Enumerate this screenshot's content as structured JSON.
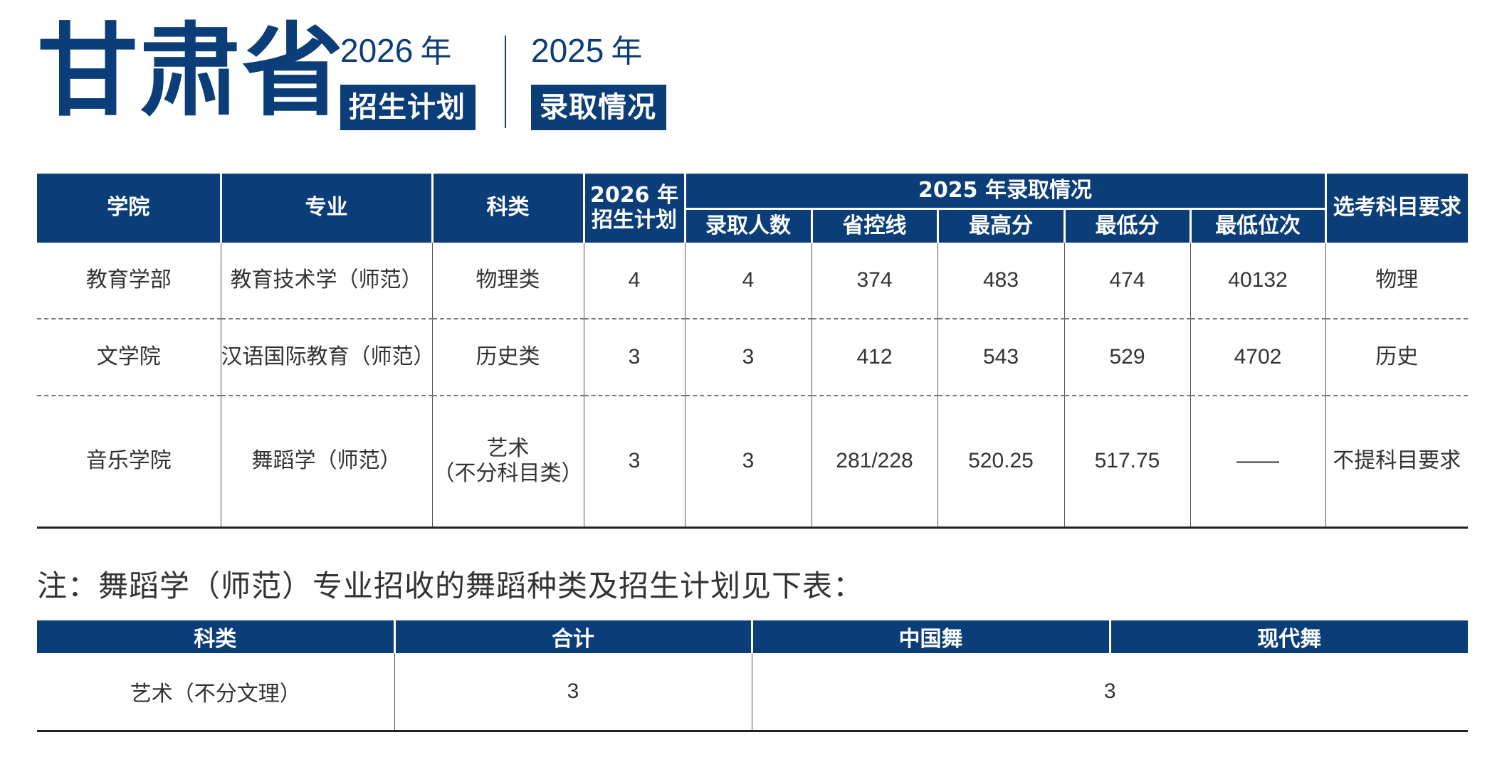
{
  "header": {
    "province": "甘肃省",
    "block_plan": {
      "year": "2026",
      "year_suffix": "年",
      "tag": "招生计划"
    },
    "block_admit": {
      "year": "2025",
      "year_suffix": "年",
      "tag": "录取情况"
    }
  },
  "colors": {
    "navy": "#0b3d78",
    "text": "#333333"
  },
  "table1": {
    "headers": {
      "college": "学院",
      "major": "专业",
      "category": "科类",
      "plan_2026_line1": "2026 年",
      "plan_2026_line2": "招生计划",
      "admit_2025": "2025 年录取情况",
      "admitted_count": "录取人数",
      "provincial_line": "省控线",
      "max_score": "最高分",
      "min_score": "最低分",
      "min_rank": "最低位次",
      "subject_req": "选考科目要求"
    },
    "rows": [
      {
        "college": "教育学部",
        "major": "教育技术学（师范）",
        "category": "物理类",
        "category_line2": "",
        "plan": "4",
        "admitted": "4",
        "provincial_line": "374",
        "max": "483",
        "min": "474",
        "min_rank": "40132",
        "subject": "物理"
      },
      {
        "college": "文学院",
        "major": "汉语国际教育（师范）",
        "category": "历史类",
        "category_line2": "",
        "plan": "3",
        "admitted": "3",
        "provincial_line": "412",
        "max": "543",
        "min": "529",
        "min_rank": "4702",
        "subject": "历史"
      },
      {
        "college": "音乐学院",
        "major": "舞蹈学（师范）",
        "category": "艺术",
        "category_line2": "（不分科目类）",
        "plan": "3",
        "admitted": "3",
        "provincial_line": "281/228",
        "max": "520.25",
        "min": "517.75",
        "min_rank": "——",
        "subject": "不提科目要求"
      }
    ]
  },
  "note": "注：舞蹈学（师范）专业招收的舞蹈种类及招生计划见下表：",
  "table2": {
    "headers": {
      "category": "科类",
      "total": "合计",
      "chinese_dance": "中国舞",
      "modern_dance": "现代舞"
    },
    "row": {
      "category": "艺术（不分文理）",
      "total": "3",
      "dance_count": "3"
    }
  }
}
